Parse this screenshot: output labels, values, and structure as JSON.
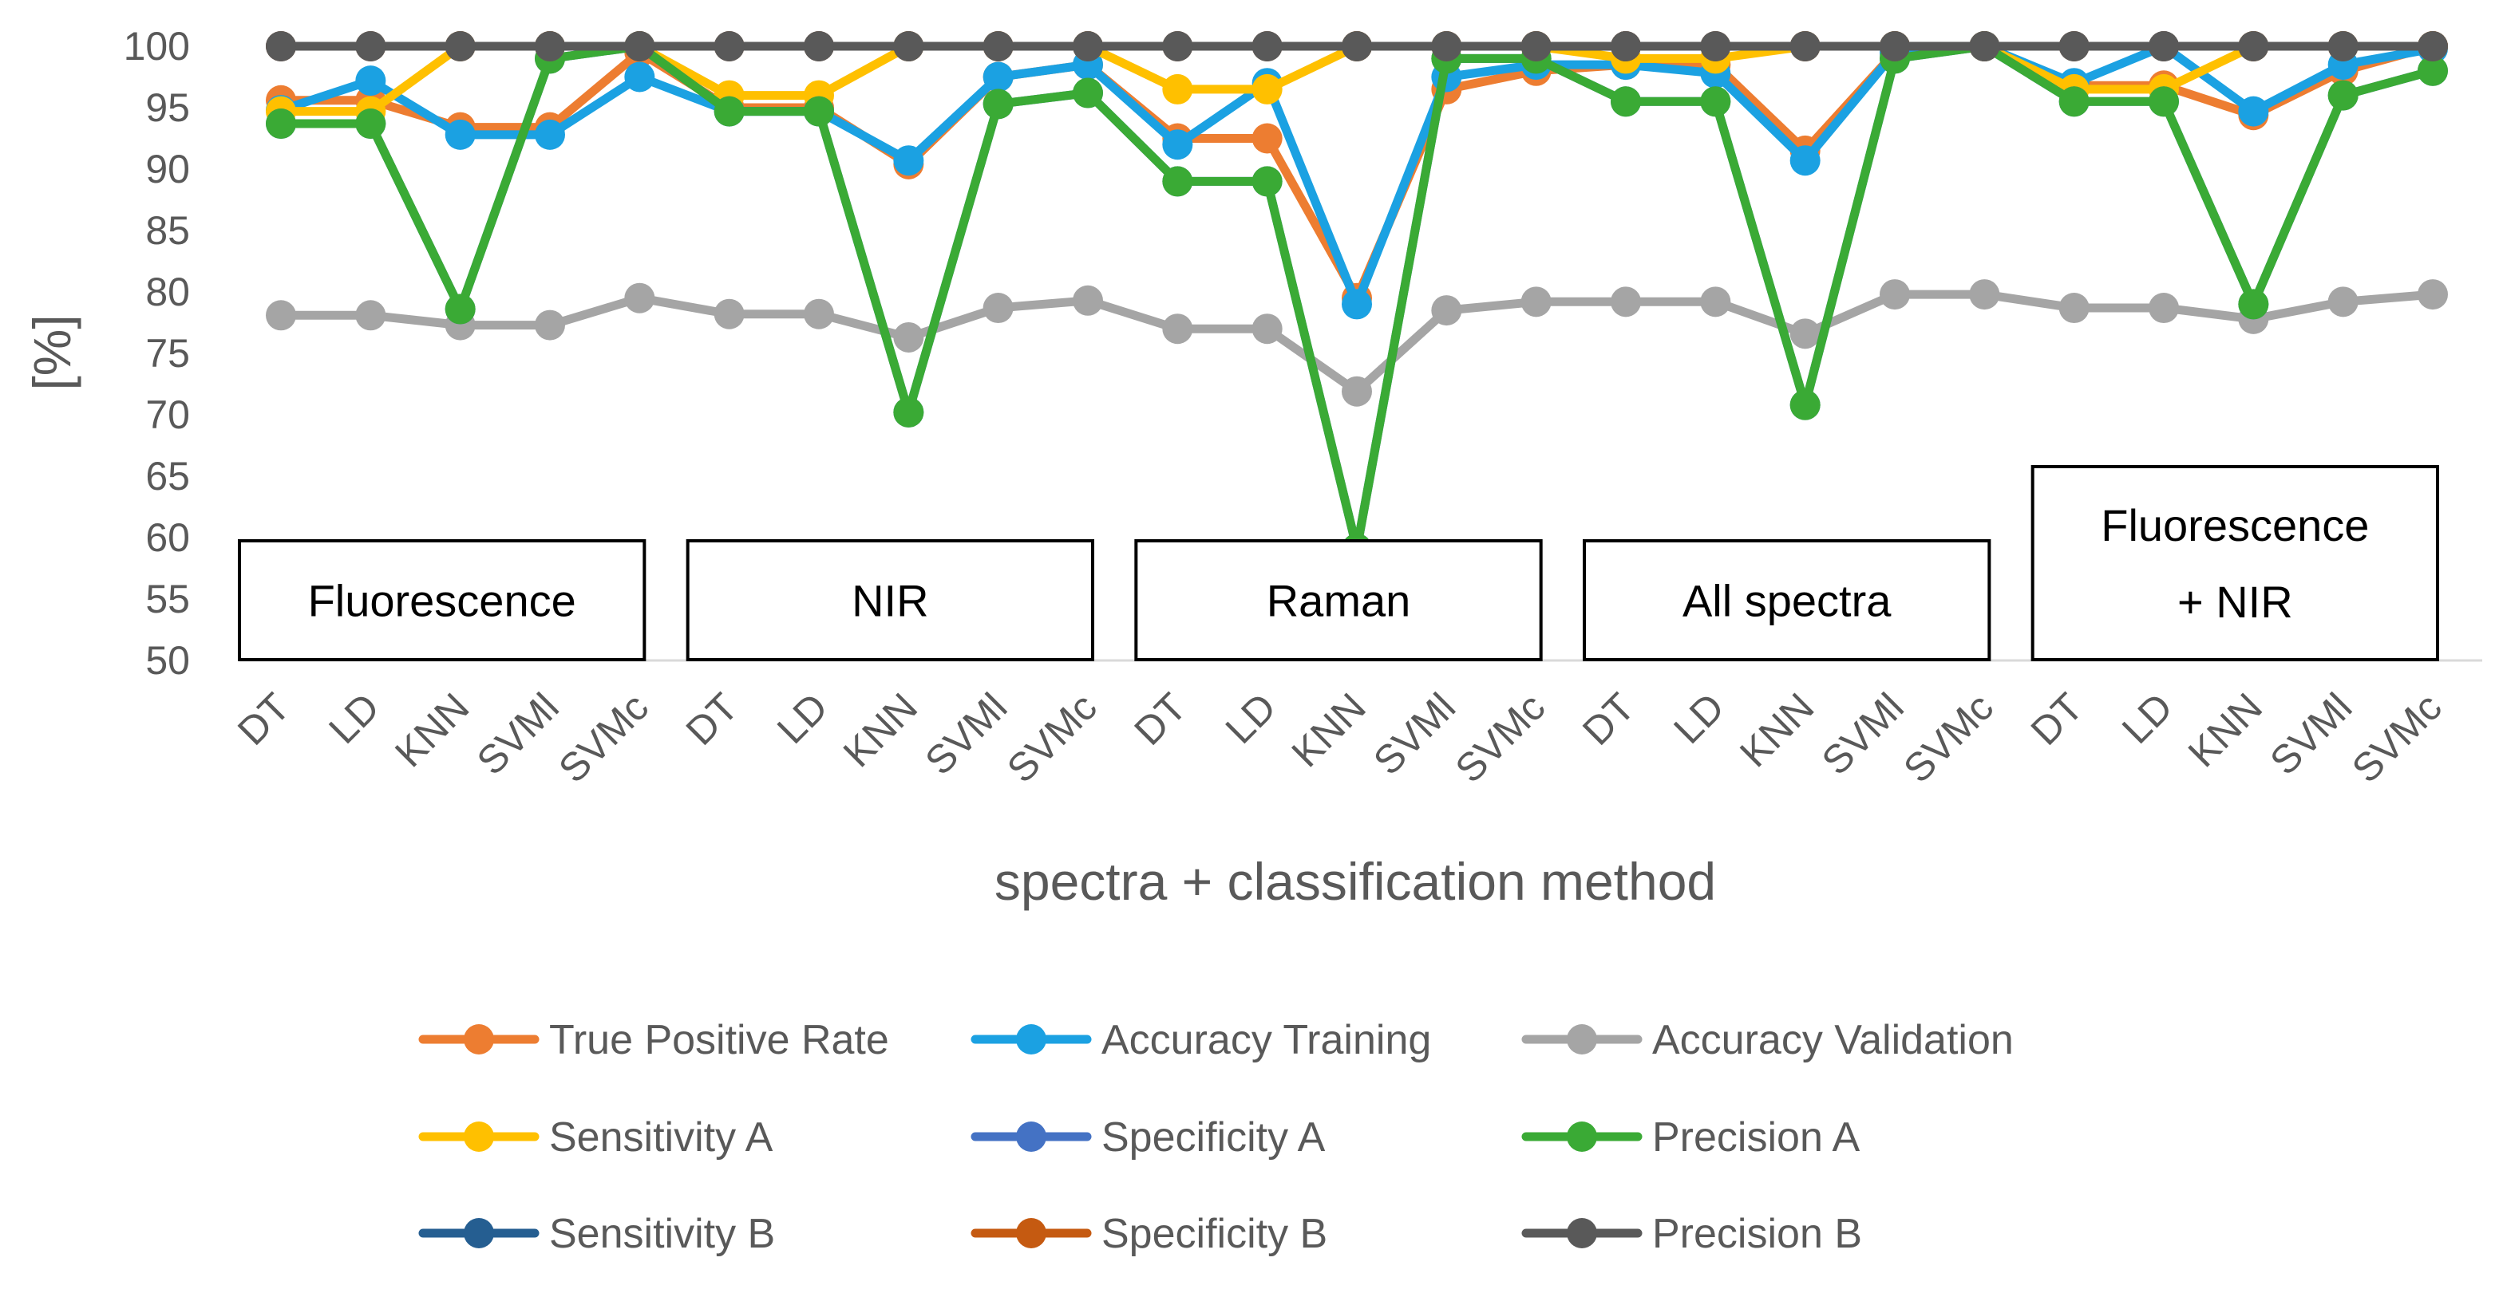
{
  "chart_data": {
    "type": "line",
    "title": "",
    "xlabel": "spectra + classification method",
    "ylabel": "[%]",
    "ylim": [
      50,
      100
    ],
    "yticks": [
      50,
      55,
      60,
      65,
      70,
      75,
      80,
      85,
      90,
      95,
      100
    ],
    "grid": false,
    "legend_position": "bottom",
    "categories": [
      "DT",
      "LD",
      "KNN",
      "SVMl",
      "SVMc",
      "DT",
      "LD",
      "KNN",
      "SVMl",
      "SVMc",
      "DT",
      "LD",
      "KNN",
      "SVMl",
      "SVMc",
      "DT",
      "LD",
      "KNN",
      "SVMl",
      "SVMc",
      "DT",
      "LD",
      "KNN",
      "SVMl",
      "SVMc"
    ],
    "groups": [
      {
        "label": "Fluorescence",
        "start": 0,
        "end": 4
      },
      {
        "label": "NIR",
        "start": 5,
        "end": 9
      },
      {
        "label": "Raman",
        "start": 10,
        "end": 14
      },
      {
        "label": "All spectra",
        "start": 15,
        "end": 19
      },
      {
        "label": "Fluorescence\n+ NIR",
        "start": 20,
        "end": 24
      }
    ],
    "series": [
      {
        "name": "True Positive Rate",
        "color": "#ED7D31",
        "values": [
          95.6,
          95.6,
          93.4,
          93.4,
          99.5,
          95.0,
          95.0,
          90.4,
          97.5,
          98.5,
          92.5,
          92.5,
          79.5,
          96.5,
          98.0,
          98.5,
          98.5,
          91.5,
          99.5,
          100,
          96.8,
          96.8,
          94.4,
          98.0,
          100
        ]
      },
      {
        "name": "Accuracy Training",
        "color": "#1BA1E2",
        "values": [
          94.8,
          97.2,
          92.8,
          92.8,
          97.5,
          94.7,
          94.7,
          90.7,
          97.5,
          98.5,
          92.0,
          97.0,
          79.0,
          97.5,
          98.5,
          98.5,
          97.8,
          90.7,
          99.5,
          100,
          97.0,
          100,
          94.7,
          98.5,
          99.8
        ]
      },
      {
        "name": "Accuracy Validation",
        "color": "#A5A5A5",
        "values": [
          78.1,
          78.1,
          77.3,
          77.3,
          79.5,
          78.2,
          78.2,
          76.3,
          78.7,
          79.3,
          77.0,
          77.0,
          71.9,
          78.5,
          79.2,
          79.2,
          79.2,
          76.6,
          79.8,
          79.8,
          78.7,
          78.7,
          77.8,
          79.2,
          79.8
        ]
      },
      {
        "name": "Sensitivity A",
        "color": "#FFC000",
        "values": [
          94.7,
          94.7,
          100,
          100,
          100,
          96.0,
          96.0,
          100,
          100,
          100,
          96.5,
          96.5,
          100,
          100,
          100,
          99.0,
          99.0,
          100,
          100,
          100,
          96.5,
          96.5,
          100,
          100,
          100
        ]
      },
      {
        "name": "Specificity A",
        "color": "#4472C4",
        "values": [
          93.7,
          93.7,
          78.6,
          99.0,
          100,
          94.7,
          94.7,
          70.2,
          95.3,
          96.2,
          89.0,
          89.0,
          59.1,
          99.0,
          99.0,
          95.5,
          95.5,
          70.8,
          99.0,
          100,
          95.5,
          95.5,
          79.0,
          96.0,
          98.0
        ]
      },
      {
        "name": "Precision A",
        "color": "#3AAA35",
        "values": [
          93.7,
          93.7,
          78.6,
          99.0,
          100,
          94.7,
          94.7,
          70.2,
          95.3,
          96.2,
          89.0,
          89.0,
          59.1,
          99.0,
          99.0,
          95.5,
          95.5,
          70.8,
          99.0,
          100,
          95.5,
          95.5,
          79.0,
          96.0,
          98.0
        ]
      },
      {
        "name": "Sensitivity B",
        "color": "#255E91",
        "values": [
          100,
          100,
          100,
          100,
          100,
          100,
          100,
          100,
          100,
          100,
          100,
          100,
          100,
          100,
          100,
          100,
          100,
          100,
          100,
          100,
          100,
          100,
          100,
          100,
          100
        ]
      },
      {
        "name": "Specificity B",
        "color": "#C55A11",
        "values": [
          100,
          100,
          100,
          100,
          100,
          100,
          100,
          100,
          100,
          100,
          100,
          100,
          100,
          100,
          100,
          100,
          100,
          100,
          100,
          100,
          100,
          100,
          100,
          100,
          100
        ]
      },
      {
        "name": "Precision B",
        "color": "#595959",
        "values": [
          100,
          100,
          100,
          100,
          100,
          100,
          100,
          100,
          100,
          100,
          100,
          100,
          100,
          100,
          100,
          100,
          100,
          100,
          100,
          100,
          100,
          100,
          100,
          100,
          100
        ]
      }
    ]
  }
}
